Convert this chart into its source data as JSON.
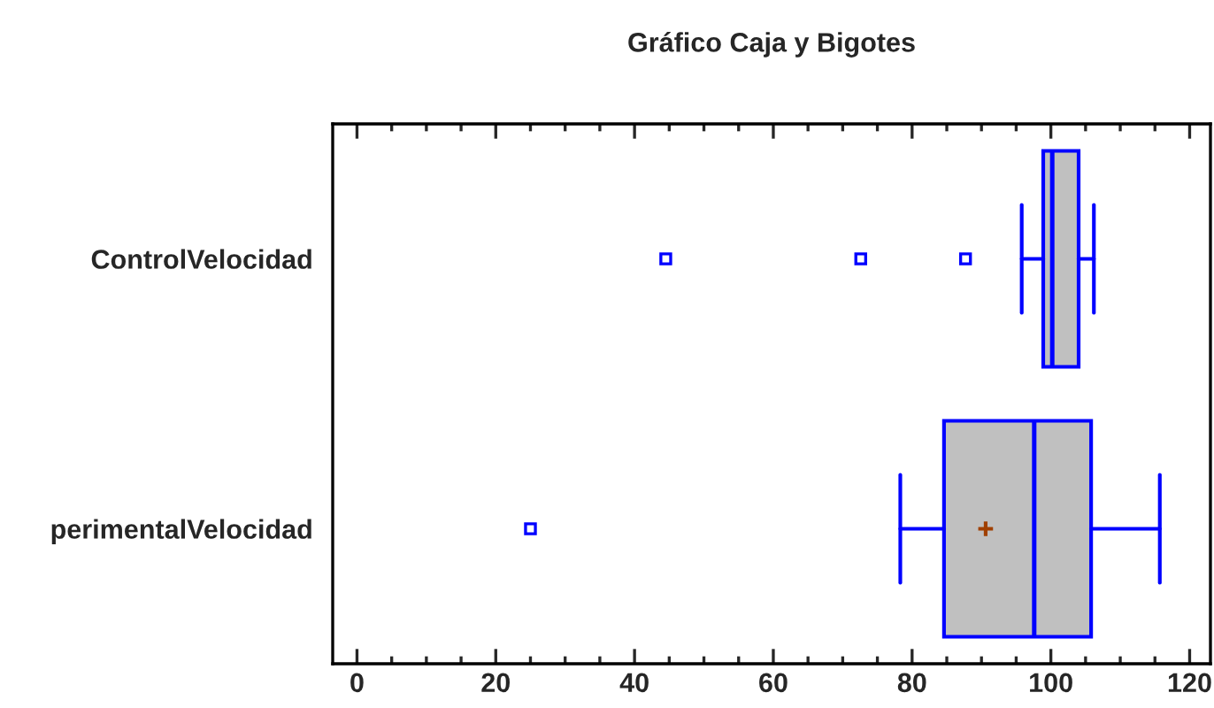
{
  "chart_data": {
    "type": "box",
    "title": "Gráfico Caja y Bigotes",
    "orientation": "horizontal",
    "categories": [
      "ControlVelocidad",
      "perimentalVelocidad"
    ],
    "boxes": [
      {
        "low": 95.8,
        "q1": 98.9,
        "median": 100.2,
        "q3": 104.0,
        "high": 106.2,
        "outliers": [
          44.5,
          72.6,
          87.7
        ]
      },
      {
        "low": 78.3,
        "q1": 84.6,
        "median": 97.6,
        "q3": 105.8,
        "high": 115.7,
        "mean": 90.6,
        "outliers": [
          25.0
        ]
      }
    ],
    "color": "#0000ff",
    "xlim": [
      -3.5,
      123
    ],
    "xticks": [
      0,
      20,
      40,
      60,
      80,
      100,
      120
    ],
    "grid": false
  }
}
